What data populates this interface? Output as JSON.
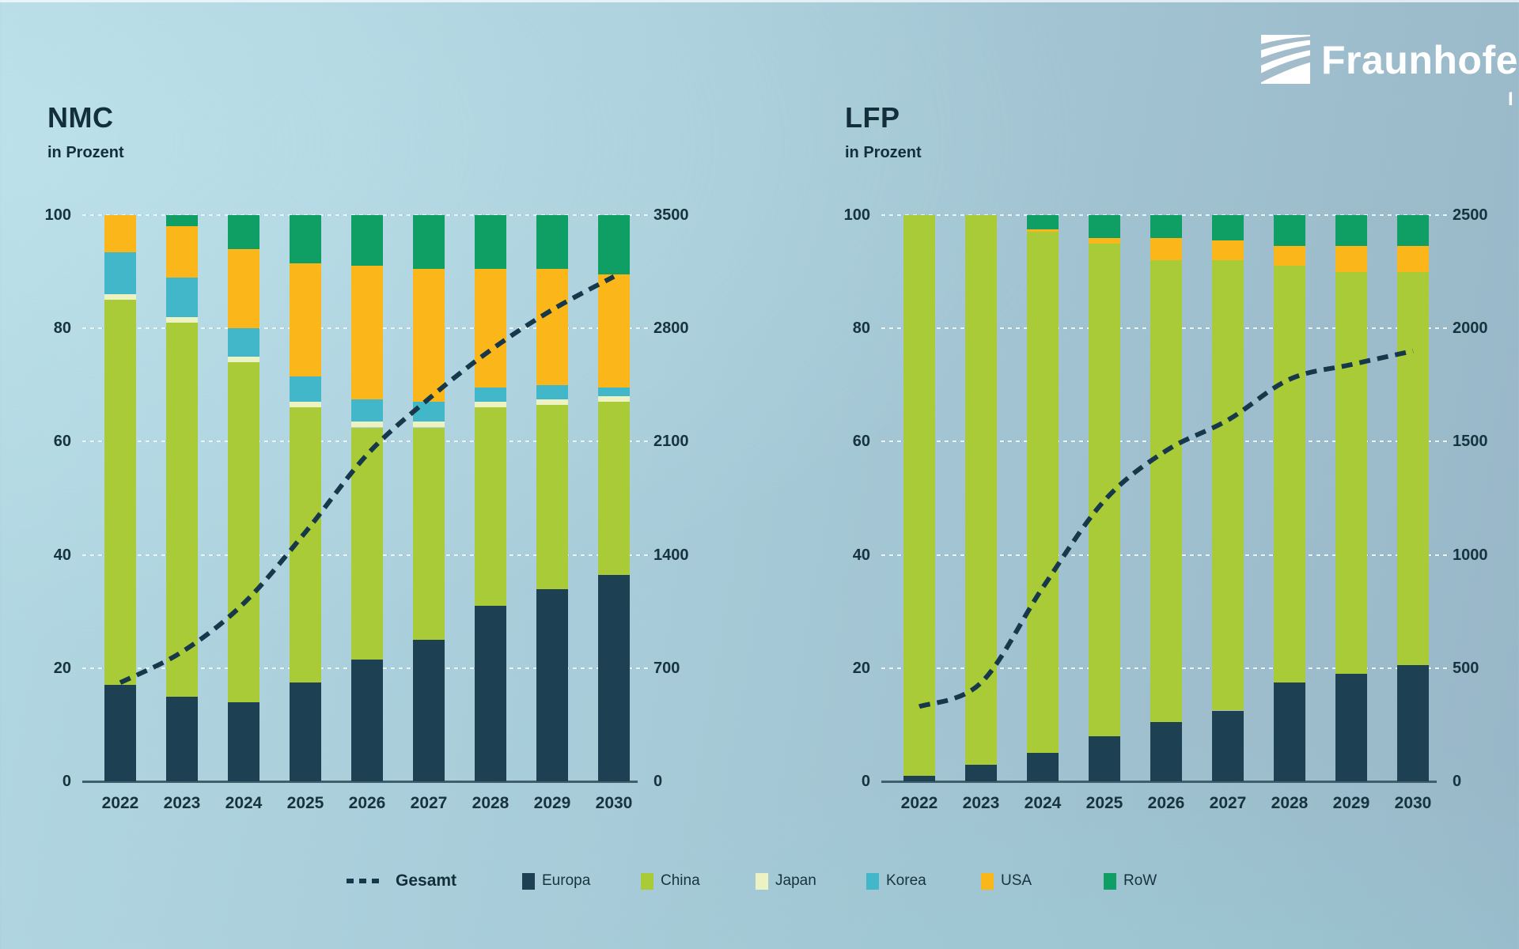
{
  "logo": {
    "brand": "Fraunhofer",
    "institute_suffix": "I"
  },
  "legend": {
    "line_label": "Gesamt",
    "items": [
      {
        "label": "Europa",
        "color": "#1d4153"
      },
      {
        "label": "China",
        "color": "#a9cb37"
      },
      {
        "label": "Japan",
        "color": "#edf2c2"
      },
      {
        "label": "Korea",
        "color": "#41b7c9"
      },
      {
        "label": "USA",
        "color": "#fbb61a"
      },
      {
        "label": "RoW",
        "color": "#0f9e63"
      }
    ]
  },
  "chart_data": [
    {
      "type": "bar",
      "variant": "stacked-100percent-with-line",
      "title": "NMC",
      "subtitle": "in Prozent",
      "categories": [
        "2022",
        "2023",
        "2024",
        "2025",
        "2026",
        "2027",
        "2028",
        "2029",
        "2030"
      ],
      "left_axis": {
        "min": 0,
        "max": 100,
        "ticks": [
          0,
          20,
          40,
          60,
          80,
          100
        ]
      },
      "right_axis": {
        "min": 0,
        "max": 3500,
        "ticks": [
          0,
          700,
          1400,
          2100,
          2800,
          3500
        ]
      },
      "grid": true,
      "series": [
        {
          "name": "Europa",
          "color": "#1d4153",
          "values": [
            17,
            15,
            14,
            17.5,
            21.5,
            25,
            31,
            34,
            36.5
          ]
        },
        {
          "name": "China",
          "color": "#a9cb37",
          "values": [
            68,
            66,
            60,
            48.5,
            41,
            37.5,
            35,
            32.5,
            30.5
          ]
        },
        {
          "name": "Japan",
          "color": "#edf2c2",
          "values": [
            1,
            1,
            1,
            1,
            1,
            1,
            1,
            1,
            1
          ]
        },
        {
          "name": "Korea",
          "color": "#41b7c9",
          "values": [
            7.5,
            7,
            5,
            4.5,
            4,
            3.5,
            2.5,
            2.5,
            1.5
          ]
        },
        {
          "name": "USA",
          "color": "#fbb61a",
          "values": [
            6.5,
            9,
            14,
            20,
            23.5,
            23.5,
            21,
            20.5,
            20
          ]
        },
        {
          "name": "RoW",
          "color": "#0f9e63",
          "values": [
            0,
            2,
            6,
            8.5,
            9,
            9.5,
            9.5,
            9.5,
            10.5
          ]
        }
      ],
      "line_series": {
        "name": "Gesamt",
        "color": "#16384a",
        "axis": "right",
        "values": [
          610,
          800,
          1100,
          1540,
          2020,
          2365,
          2665,
          2915,
          3120
        ]
      }
    },
    {
      "type": "bar",
      "variant": "stacked-100percent-with-line",
      "title": "LFP",
      "subtitle": "in Prozent",
      "categories": [
        "2022",
        "2023",
        "2024",
        "2025",
        "2026",
        "2027",
        "2028",
        "2029",
        "2030"
      ],
      "left_axis": {
        "min": 0,
        "max": 100,
        "ticks": [
          0,
          20,
          40,
          60,
          80,
          100
        ]
      },
      "right_axis": {
        "min": 0,
        "max": 2500,
        "ticks": [
          0,
          500,
          1000,
          1500,
          2000,
          2500
        ]
      },
      "grid": true,
      "series": [
        {
          "name": "Europa",
          "color": "#1d4153",
          "values": [
            1,
            3,
            5,
            8,
            10.5,
            12.5,
            17.5,
            19,
            20.5
          ]
        },
        {
          "name": "China",
          "color": "#a9cb37",
          "values": [
            99,
            97,
            92,
            87,
            81.5,
            79.5,
            73.5,
            71,
            69.5
          ]
        },
        {
          "name": "Japan",
          "color": "#edf2c2",
          "values": [
            0,
            0,
            0,
            0,
            0,
            0,
            0,
            0,
            0
          ]
        },
        {
          "name": "Korea",
          "color": "#41b7c9",
          "values": [
            0,
            0,
            0,
            0,
            0,
            0,
            0,
            0,
            0
          ]
        },
        {
          "name": "USA",
          "color": "#fbb61a",
          "values": [
            0,
            0,
            0.5,
            1,
            4,
            3.5,
            3.5,
            4.5,
            4.5
          ]
        },
        {
          "name": "RoW",
          "color": "#0f9e63",
          "values": [
            0,
            0,
            2.5,
            4,
            4,
            4.5,
            5.5,
            5.5,
            5.5
          ]
        }
      ],
      "line_series": {
        "name": "Gesamt",
        "color": "#16384a",
        "axis": "right",
        "values": [
          330,
          435,
          855,
          1240,
          1460,
          1595,
          1775,
          1840,
          1900
        ]
      }
    }
  ]
}
